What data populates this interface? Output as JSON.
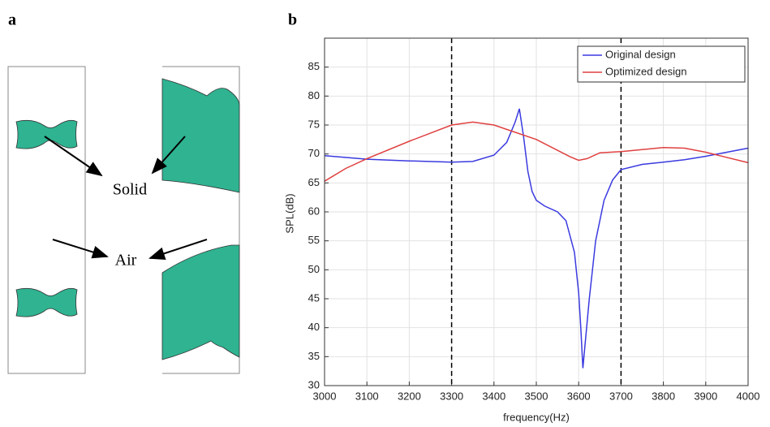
{
  "panel_a": {
    "label": "a",
    "annotations": [
      "Solid",
      "Air"
    ]
  },
  "chart_data": {
    "type": "line",
    "panel_label": "b",
    "x_label": "frequency(Hz)",
    "y_label": "SPL(dB)",
    "xlim": [
      3000,
      4000
    ],
    "xticks": [
      3000,
      3100,
      3200,
      3300,
      3400,
      3500,
      3600,
      3700,
      3800,
      3900,
      4000
    ],
    "ylim": [
      30,
      90
    ],
    "yticks": [
      30,
      35,
      40,
      45,
      50,
      55,
      60,
      65,
      70,
      75,
      80,
      85
    ],
    "grid": true,
    "legend": "upper right",
    "vlines": [
      3300,
      3700
    ],
    "series": [
      {
        "name": "Original design",
        "color": "#3a3ae0",
        "x": [
          3000,
          3100,
          3200,
          3300,
          3350,
          3400,
          3430,
          3450,
          3460,
          3470,
          3480,
          3490,
          3500,
          3520,
          3550,
          3570,
          3590,
          3600,
          3605,
          3610,
          3615,
          3625,
          3640,
          3660,
          3680,
          3700,
          3750,
          3800,
          3850,
          3900,
          3950,
          4000
        ],
        "values": [
          69.7,
          69.1,
          68.8,
          68.6,
          68.7,
          69.8,
          72,
          75.5,
          77.8,
          73,
          67,
          63.5,
          62,
          61,
          60,
          58.5,
          53,
          46,
          40,
          33,
          37,
          45,
          55,
          62,
          65.5,
          67.3,
          68.2,
          68.6,
          69,
          69.6,
          70.3,
          71
        ]
      },
      {
        "name": "Optimized design",
        "color": "#e04040",
        "x": [
          3000,
          3050,
          3100,
          3200,
          3300,
          3350,
          3400,
          3500,
          3580,
          3600,
          3620,
          3650,
          3700,
          3800,
          3850,
          3900,
          4000
        ],
        "values": [
          65.3,
          67.5,
          69.2,
          72.2,
          75,
          75.5,
          75,
          72.5,
          69.5,
          68.9,
          69.2,
          70.2,
          70.4,
          71.1,
          71,
          70.3,
          68.5
        ]
      }
    ]
  }
}
